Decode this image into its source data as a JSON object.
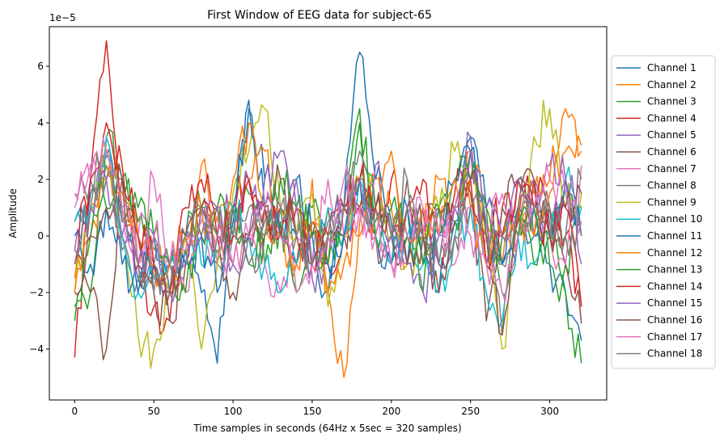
{
  "chart_data": {
    "type": "line",
    "title": "First Window of EEG data for subject-65",
    "xlabel": "Time samples in seconds (64Hz x 5sec = 320 samples)",
    "ylabel": "Amplitude",
    "y_offset_text": "1e−5",
    "y_scale": 1e-05,
    "xlim": [
      -16,
      336
    ],
    "ylim": [
      -5.8,
      7.4
    ],
    "x_ticks": [
      0,
      50,
      100,
      150,
      200,
      250,
      300
    ],
    "x_tick_labels": [
      "0",
      "50",
      "100",
      "150",
      "200",
      "250",
      "300"
    ],
    "y_ticks": [
      -4,
      -2,
      0,
      2,
      4,
      6
    ],
    "y_tick_labels": [
      "−4",
      "−2",
      "0",
      "2",
      "4",
      "6"
    ],
    "grid": false,
    "legend_position": "outside-right",
    "x_anchor": [
      0,
      10,
      20,
      30,
      40,
      50,
      60,
      70,
      80,
      90,
      100,
      110,
      120,
      130,
      140,
      150,
      160,
      170,
      180,
      190,
      200,
      210,
      220,
      230,
      240,
      250,
      260,
      270,
      280,
      290,
      300,
      310,
      320
    ],
    "series": [
      {
        "name": "Channel 1",
        "color": "#1f77b4",
        "values": [
          0.5,
          1.5,
          2.8,
          0.5,
          -1.5,
          -1.0,
          -2.0,
          -0.5,
          -2.0,
          -4.5,
          0.5,
          4.5,
          2.0,
          1.0,
          0.0,
          -1.0,
          -2.0,
          1.0,
          6.5,
          2.0,
          0.5,
          -1.0,
          1.0,
          -2.0,
          0.5,
          3.5,
          1.0,
          -1.0,
          1.0,
          0.0,
          -1.0,
          -2.0,
          -3.7
        ]
      },
      {
        "name": "Channel 2",
        "color": "#ff7f0e",
        "values": [
          -1.5,
          1.0,
          3.0,
          1.5,
          -1.0,
          -0.5,
          -2.0,
          -0.5,
          2.5,
          0.5,
          1.0,
          2.0,
          3.0,
          0.0,
          -1.0,
          2.0,
          -2.0,
          -5.0,
          0.5,
          2.0,
          1.0,
          -1.0,
          0.0,
          2.0,
          1.0,
          3.0,
          0.5,
          -1.0,
          0.0,
          1.5,
          2.0,
          4.5,
          3.0
        ]
      },
      {
        "name": "Channel 3",
        "color": "#2ca02c",
        "values": [
          -3.0,
          -2.0,
          3.5,
          2.0,
          0.5,
          0.0,
          -1.0,
          0.0,
          1.0,
          -0.5,
          0.0,
          1.5,
          -1.0,
          0.5,
          -2.0,
          1.0,
          -1.0,
          0.0,
          4.0,
          1.0,
          0.0,
          1.0,
          -2.0,
          1.0,
          2.0,
          3.0,
          -1.0,
          0.0,
          1.0,
          -1.0,
          0.0,
          -1.0,
          1.0
        ]
      },
      {
        "name": "Channel 4",
        "color": "#d62728",
        "values": [
          -4.3,
          2.0,
          6.9,
          1.0,
          -1.0,
          -2.5,
          -3.0,
          0.0,
          1.0,
          0.0,
          1.0,
          2.0,
          0.0,
          1.0,
          -1.0,
          0.5,
          -1.0,
          0.0,
          1.0,
          0.0,
          2.0,
          0.0,
          1.0,
          -1.0,
          1.5,
          2.0,
          0.0,
          1.0,
          0.5,
          2.0,
          1.0,
          0.0,
          -2.5
        ]
      },
      {
        "name": "Channel 5",
        "color": "#9467bd",
        "values": [
          -0.5,
          1.0,
          3.0,
          0.0,
          -1.0,
          -1.5,
          -2.0,
          -1.0,
          0.0,
          1.0,
          0.5,
          2.0,
          1.0,
          0.0,
          2.0,
          -1.5,
          -1.0,
          0.0,
          1.0,
          2.5,
          0.0,
          -1.0,
          0.0,
          -1.0,
          1.0,
          3.5,
          -1.0,
          0.0,
          1.0,
          2.0,
          0.0,
          2.0,
          -1.0
        ]
      },
      {
        "name": "Channel 6",
        "color": "#8c564b",
        "values": [
          -1.0,
          -2.0,
          -4.0,
          2.0,
          0.0,
          -2.0,
          -3.0,
          -1.0,
          1.0,
          0.0,
          -2.0,
          0.0,
          1.0,
          0.0,
          -1.0,
          0.0,
          1.0,
          0.0,
          1.0,
          0.0,
          -1.0,
          2.0,
          0.0,
          1.0,
          0.5,
          1.5,
          -3.0,
          1.0,
          2.0,
          0.0,
          1.0,
          -1.0,
          -3.1
        ]
      },
      {
        "name": "Channel 7",
        "color": "#e377c2",
        "values": [
          1.0,
          2.0,
          3.0,
          1.0,
          0.0,
          2.0,
          -1.0,
          -2.0,
          0.0,
          -1.0,
          1.0,
          0.0,
          -1.0,
          -2.0,
          0.0,
          -1.0,
          2.0,
          0.0,
          1.0,
          0.0,
          -1.0,
          1.0,
          0.0,
          1.0,
          -1.0,
          1.0,
          0.0,
          1.5,
          0.0,
          1.0,
          0.0,
          -1.0,
          2.5
        ]
      },
      {
        "name": "Channel 8",
        "color": "#7f7f7f",
        "values": [
          1.5,
          2.0,
          2.5,
          -0.5,
          -1.5,
          -1.0,
          -1.0,
          0.0,
          1.0,
          -1.0,
          0.0,
          1.0,
          0.5,
          1.0,
          0.0,
          -1.0,
          0.5,
          1.0,
          3.0,
          1.0,
          0.0,
          2.0,
          0.0,
          -1.0,
          0.0,
          2.0,
          1.0,
          -3.5,
          2.0,
          0.0,
          1.0,
          0.0,
          2.0
        ]
      },
      {
        "name": "Channel 9",
        "color": "#bcbd22",
        "values": [
          -2.0,
          1.0,
          3.0,
          0.0,
          -3.5,
          -4.0,
          -2.0,
          0.0,
          -4.0,
          -1.0,
          1.5,
          3.0,
          4.5,
          1.0,
          0.0,
          1.5,
          -2.5,
          0.0,
          2.0,
          1.0,
          0.0,
          -1.0,
          0.0,
          1.0,
          3.0,
          2.0,
          0.0,
          -4.0,
          0.0,
          3.5,
          4.5,
          1.0,
          1.5
        ]
      },
      {
        "name": "Channel 10",
        "color": "#17becf",
        "values": [
          0.5,
          1.0,
          3.5,
          0.0,
          -2.0,
          -1.5,
          -1.0,
          0.0,
          -1.0,
          0.0,
          1.0,
          0.0,
          -1.0,
          -2.0,
          -1.0,
          0.0,
          1.0,
          0.0,
          2.0,
          0.0,
          -1.0,
          0.0,
          -1.0,
          -2.0,
          0.0,
          1.0,
          -2.0,
          -3.0,
          0.0,
          -1.0,
          0.0,
          2.0,
          1.0
        ]
      },
      {
        "name": "Channel 11",
        "color": "#1f77b4",
        "values": [
          0.0,
          -1.0,
          1.0,
          -1.0,
          -2.0,
          0.0,
          -1.0,
          -1.0,
          0.0,
          -2.0,
          1.0,
          4.8,
          1.0,
          0.0,
          2.0,
          0.0,
          -1.0,
          0.0,
          2.0,
          0.0,
          -1.0,
          1.0,
          -1.0,
          0.0,
          2.0,
          3.0,
          0.0,
          -1.0,
          0.0,
          1.0,
          0.0,
          2.0,
          0.0
        ]
      },
      {
        "name": "Channel 12",
        "color": "#ff7f0e",
        "values": [
          -2.0,
          0.0,
          2.0,
          1.0,
          0.0,
          -1.0,
          -1.0,
          0.0,
          1.0,
          0.0,
          2.0,
          4.0,
          1.0,
          0.0,
          -1.0,
          0.5,
          -2.0,
          -1.0,
          0.0,
          1.0,
          3.0,
          0.0,
          1.0,
          0.0,
          2.0,
          1.0,
          -1.0,
          0.0,
          1.0,
          0.0,
          1.5,
          3.0,
          3.2
        ]
      },
      {
        "name": "Channel 13",
        "color": "#2ca02c",
        "values": [
          -2.5,
          0.0,
          1.0,
          2.0,
          1.0,
          0.0,
          -1.0,
          -2.0,
          0.0,
          1.0,
          0.0,
          -1.0,
          0.0,
          2.0,
          1.0,
          0.0,
          -1.0,
          1.0,
          4.5,
          0.0,
          1.0,
          0.0,
          -1.0,
          1.0,
          0.5,
          2.0,
          1.0,
          -2.0,
          0.0,
          1.0,
          -1.0,
          -2.0,
          -4.5
        ]
      },
      {
        "name": "Channel 14",
        "color": "#d62728",
        "values": [
          -0.5,
          2.0,
          4.0,
          2.5,
          0.0,
          -1.0,
          -2.0,
          1.0,
          2.0,
          1.0,
          0.0,
          2.0,
          1.0,
          0.0,
          1.0,
          -1.0,
          0.0,
          1.0,
          2.0,
          1.0,
          0.0,
          1.0,
          2.0,
          0.0,
          1.0,
          2.0,
          -1.0,
          0.0,
          2.0,
          1.0,
          0.0,
          1.0,
          -2.5
        ]
      },
      {
        "name": "Channel 15",
        "color": "#9467bd",
        "values": [
          -1.0,
          1.0,
          2.0,
          0.0,
          -1.0,
          0.0,
          -2.0,
          -1.0,
          0.0,
          1.0,
          -1.0,
          0.0,
          2.0,
          3.0,
          1.0,
          -1.0,
          0.0,
          1.0,
          2.0,
          1.0,
          0.0,
          -1.0,
          -2.0,
          0.0,
          1.0,
          3.0,
          1.0,
          0.0,
          2.0,
          1.0,
          2.5,
          2.0,
          0.5
        ]
      },
      {
        "name": "Channel 16",
        "color": "#8c564b",
        "values": [
          -2.0,
          0.0,
          1.0,
          2.0,
          -1.0,
          -1.0,
          -2.0,
          0.0,
          1.0,
          0.0,
          -1.0,
          0.0,
          1.0,
          2.0,
          0.0,
          -1.0,
          0.0,
          1.0,
          2.0,
          1.0,
          0.0,
          -1.0,
          0.0,
          -2.0,
          1.0,
          2.0,
          0.0,
          -3.5,
          1.0,
          2.0,
          0.0,
          1.0,
          1.5
        ]
      },
      {
        "name": "Channel 17",
        "color": "#e377c2",
        "values": [
          1.5,
          2.5,
          3.0,
          1.0,
          -1.0,
          0.0,
          -1.0,
          -0.5,
          0.5,
          0.0,
          -1.0,
          0.0,
          1.0,
          0.0,
          -2.0,
          -1.0,
          0.0,
          2.0,
          1.0,
          0.0,
          -1.0,
          0.0,
          1.0,
          0.0,
          1.0,
          0.0,
          -1.0,
          -2.0,
          0.0,
          1.0,
          2.0,
          1.5,
          0.5
        ]
      },
      {
        "name": "Channel 18",
        "color": "#7f7f7f",
        "values": [
          -0.5,
          1.0,
          2.0,
          0.5,
          -1.0,
          -2.0,
          -1.0,
          0.0,
          1.0,
          0.0,
          1.0,
          -1.0,
          0.0,
          1.0,
          0.0,
          -1.0,
          0.0,
          1.0,
          2.0,
          0.5,
          0.0,
          1.0,
          0.0,
          -1.0,
          0.0,
          1.0,
          0.5,
          -1.0,
          0.0,
          1.0,
          0.5,
          0.0,
          0.0
        ]
      }
    ]
  }
}
